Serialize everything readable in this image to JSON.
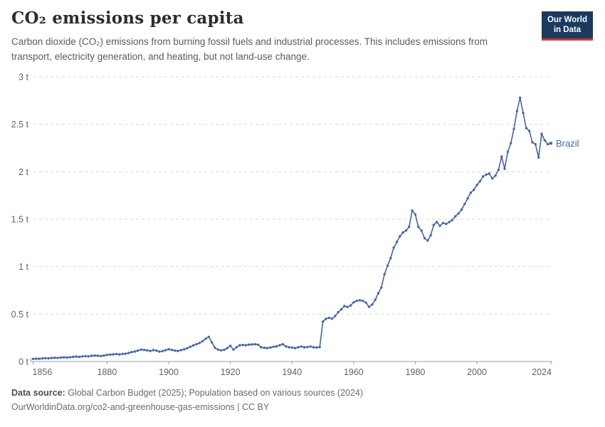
{
  "header": {
    "title": "CO₂ emissions per capita",
    "subtitle": "Carbon dioxide (CO₂) emissions from burning fossil fuels and industrial processes. This includes emissions from transport, electricity generation, and heating, but not land-use change."
  },
  "logo": {
    "line1": "Our World",
    "line2": "in Data",
    "bg_color": "#1a3a5f",
    "bar_color": "#ce373c"
  },
  "chart_data": {
    "type": "line",
    "title": "CO₂ emissions per capita",
    "xlabel": "",
    "ylabel": "",
    "unit": "t",
    "xlim": [
      1856,
      2024
    ],
    "ylim": [
      0,
      3
    ],
    "xticks": [
      1856,
      1880,
      1900,
      1920,
      1940,
      1960,
      1980,
      2000,
      2024
    ],
    "yticks": [
      0,
      0.5,
      1,
      1.5,
      2,
      2.5,
      3
    ],
    "ytick_labels": [
      "0 t",
      "0.5 t",
      "1 t",
      "1.5 t",
      "2 t",
      "2.5 t",
      "3 t"
    ],
    "grid": "dashed-horizontal",
    "grid_color": "#dadada",
    "axis_color": "#9e9e9e",
    "legend_position": "end-of-line-label",
    "series": [
      {
        "name": "Brazil",
        "color": "#4766a6",
        "x": [
          1856,
          1857,
          1858,
          1859,
          1860,
          1861,
          1862,
          1863,
          1864,
          1865,
          1866,
          1867,
          1868,
          1869,
          1870,
          1871,
          1872,
          1873,
          1874,
          1875,
          1876,
          1877,
          1878,
          1879,
          1880,
          1881,
          1882,
          1883,
          1884,
          1885,
          1886,
          1887,
          1888,
          1889,
          1890,
          1891,
          1892,
          1893,
          1894,
          1895,
          1896,
          1897,
          1898,
          1899,
          1900,
          1901,
          1902,
          1903,
          1904,
          1905,
          1906,
          1907,
          1908,
          1909,
          1910,
          1911,
          1912,
          1913,
          1914,
          1915,
          1916,
          1917,
          1918,
          1919,
          1920,
          1921,
          1922,
          1923,
          1924,
          1925,
          1926,
          1927,
          1928,
          1929,
          1930,
          1931,
          1932,
          1933,
          1934,
          1935,
          1936,
          1937,
          1938,
          1939,
          1940,
          1941,
          1942,
          1943,
          1944,
          1945,
          1946,
          1947,
          1948,
          1949,
          1950,
          1951,
          1952,
          1953,
          1954,
          1955,
          1956,
          1957,
          1958,
          1959,
          1960,
          1961,
          1962,
          1963,
          1964,
          1965,
          1966,
          1967,
          1968,
          1969,
          1970,
          1971,
          1972,
          1973,
          1974,
          1975,
          1976,
          1977,
          1978,
          1979,
          1980,
          1981,
          1982,
          1983,
          1984,
          1985,
          1986,
          1987,
          1988,
          1989,
          1990,
          1991,
          1992,
          1993,
          1994,
          1995,
          1996,
          1997,
          1998,
          1999,
          2000,
          2001,
          2002,
          2003,
          2004,
          2005,
          2006,
          2007,
          2008,
          2009,
          2010,
          2011,
          2012,
          2013,
          2014,
          2015,
          2016,
          2017,
          2018,
          2019,
          2020,
          2021,
          2022,
          2023,
          2024
        ],
        "y": [
          0.028,
          0.03,
          0.029,
          0.033,
          0.035,
          0.033,
          0.037,
          0.04,
          0.038,
          0.042,
          0.044,
          0.042,
          0.046,
          0.049,
          0.052,
          0.049,
          0.054,
          0.057,
          0.054,
          0.06,
          0.063,
          0.06,
          0.058,
          0.063,
          0.07,
          0.073,
          0.076,
          0.079,
          0.075,
          0.08,
          0.082,
          0.09,
          0.1,
          0.105,
          0.115,
          0.125,
          0.122,
          0.118,
          0.112,
          0.12,
          0.115,
          0.105,
          0.11,
          0.12,
          0.13,
          0.122,
          0.115,
          0.112,
          0.12,
          0.128,
          0.14,
          0.155,
          0.17,
          0.182,
          0.196,
          0.215,
          0.24,
          0.26,
          0.2,
          0.145,
          0.125,
          0.118,
          0.124,
          0.14,
          0.165,
          0.125,
          0.15,
          0.17,
          0.175,
          0.172,
          0.178,
          0.18,
          0.182,
          0.178,
          0.15,
          0.145,
          0.142,
          0.148,
          0.155,
          0.16,
          0.172,
          0.182,
          0.16,
          0.15,
          0.148,
          0.142,
          0.15,
          0.158,
          0.15,
          0.152,
          0.158,
          0.15,
          0.148,
          0.152,
          0.42,
          0.45,
          0.46,
          0.452,
          0.48,
          0.52,
          0.55,
          0.585,
          0.575,
          0.59,
          0.625,
          0.64,
          0.645,
          0.64,
          0.62,
          0.575,
          0.6,
          0.65,
          0.72,
          0.78,
          0.92,
          1.01,
          1.09,
          1.2,
          1.26,
          1.32,
          1.36,
          1.38,
          1.42,
          1.59,
          1.55,
          1.42,
          1.38,
          1.3,
          1.275,
          1.33,
          1.44,
          1.47,
          1.43,
          1.46,
          1.45,
          1.47,
          1.49,
          1.53,
          1.56,
          1.6,
          1.66,
          1.72,
          1.78,
          1.81,
          1.86,
          1.9,
          1.95,
          1.97,
          1.98,
          1.93,
          1.96,
          2.02,
          2.16,
          2.03,
          2.21,
          2.3,
          2.45,
          2.64,
          2.78,
          2.62,
          2.46,
          2.43,
          2.31,
          2.29,
          2.15,
          2.4,
          2.33,
          2.29,
          2.3
        ]
      }
    ]
  },
  "footer": {
    "datasource_label": "Data source:",
    "datasource_text": " Global Carbon Budget (2025); Population based on various sources (2024)",
    "url_line": "OurWorldinData.org/co2-and-greenhouse-gas-emissions | CC BY"
  }
}
